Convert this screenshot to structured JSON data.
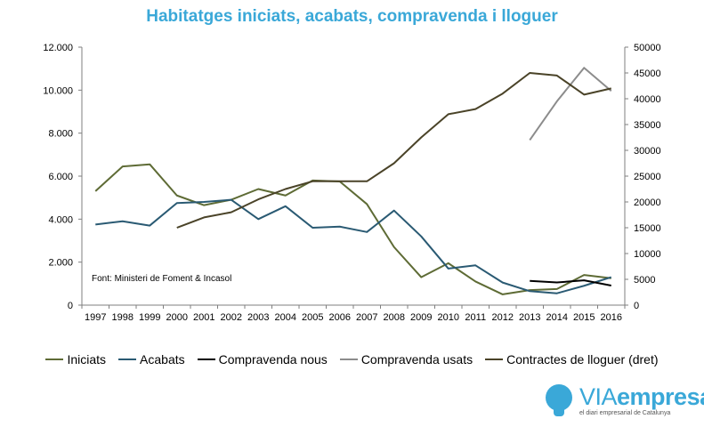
{
  "colors": {
    "title": "#3aa8d8",
    "axis": "#7f7f7f",
    "brand_primary": "#3aa8d8",
    "brand_secondary": "#3aa8d8"
  },
  "brand": {
    "name_part1": "VIA",
    "name_part2": "empresa",
    "tagline": "el diari empresarial de Catalunya",
    "icon": "lightbulb-icon"
  },
  "chart_data": {
    "type": "line",
    "title": "Habitatges iniciats, acabats, compravenda i lloguer",
    "source_note": "Font: Ministeri de Foment & Incasol",
    "categories": [
      "1997",
      "1998",
      "1999",
      "2000",
      "2001",
      "2002",
      "2003",
      "2004",
      "2005",
      "2006",
      "2007",
      "2008",
      "2009",
      "2010",
      "2011",
      "2012",
      "2013",
      "2014",
      "2015",
      "2016"
    ],
    "y_left": {
      "range": [
        0,
        12000
      ],
      "ticks": [
        0,
        2000,
        4000,
        6000,
        8000,
        10000,
        12000
      ],
      "tick_labels": [
        "0",
        "2.000",
        "4.000",
        "6.000",
        "8.000",
        "10.000",
        "12.000"
      ]
    },
    "y_right": {
      "range": [
        0,
        50000
      ],
      "ticks": [
        0,
        5000,
        10000,
        15000,
        20000,
        25000,
        30000,
        35000,
        40000,
        45000,
        50000
      ],
      "tick_labels": [
        "0",
        "5000",
        "10000",
        "15000",
        "20000",
        "25000",
        "30000",
        "35000",
        "40000",
        "45000",
        "50000"
      ]
    },
    "grid": false,
    "legend_position": "bottom",
    "series": [
      {
        "name": "Iniciats",
        "axis": "left",
        "color": "#5e6b35",
        "values": [
          5300,
          6450,
          6550,
          5100,
          4650,
          4900,
          5400,
          5100,
          5800,
          5750,
          4700,
          2700,
          1300,
          1950,
          1100,
          500,
          700,
          750,
          1400,
          1250
        ]
      },
      {
        "name": "Acabats",
        "axis": "left",
        "color": "#2a5a73",
        "values": [
          3750,
          3900,
          3700,
          4750,
          4800,
          4900,
          4000,
          4600,
          3600,
          3650,
          3400,
          4400,
          3200,
          1700,
          1850,
          1050,
          650,
          550,
          900,
          1300
        ]
      },
      {
        "name": "Compravenda nous",
        "axis": "right",
        "color": "#000000",
        "values": [
          null,
          null,
          null,
          null,
          null,
          null,
          null,
          null,
          null,
          null,
          null,
          null,
          null,
          null,
          null,
          null,
          4700,
          4400,
          4800,
          3800
        ]
      },
      {
        "name": "Compravenda usats",
        "axis": "right",
        "color": "#8c8c8c",
        "values": [
          null,
          null,
          null,
          null,
          null,
          null,
          null,
          null,
          null,
          null,
          null,
          null,
          null,
          null,
          null,
          null,
          32000,
          39500,
          46000,
          41500
        ]
      },
      {
        "name": "Contractes de lloguer (dret)",
        "axis": "right",
        "color": "#4a4328",
        "values": [
          null,
          null,
          null,
          15000,
          17000,
          18000,
          20500,
          22500,
          24000,
          24000,
          24000,
          27500,
          32500,
          37000,
          38000,
          41000,
          45000,
          44500,
          40800,
          42000
        ]
      }
    ]
  }
}
